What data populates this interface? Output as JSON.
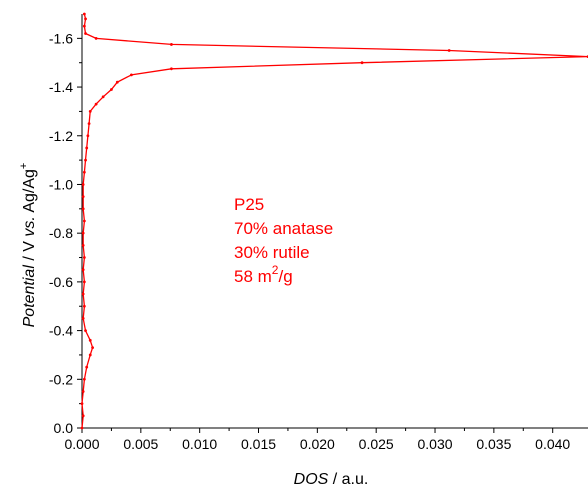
{
  "chart_data": {
    "type": "line",
    "title": "",
    "xlabel": {
      "italic": "DOS",
      "rest": " / a.u."
    },
    "ylabel": {
      "italic": "Potential",
      "rest": " / V ",
      "italic2": "vs.",
      "rest2": " Ag/Ag",
      "sup": "+"
    },
    "xlim": [
      0.0,
      0.043
    ],
    "ylim": [
      0.0,
      -1.7
    ],
    "xticks": [
      "0.000",
      "0.005",
      "0.010",
      "0.015",
      "0.020",
      "0.025",
      "0.030",
      "0.035",
      "0.040"
    ],
    "xtick_values": [
      0.0,
      0.005,
      0.01,
      0.015,
      0.02,
      0.025,
      0.03,
      0.035,
      0.04
    ],
    "yticks": [
      "0.0",
      "-0.2",
      "-0.4",
      "-0.6",
      "-0.8",
      "-1.0",
      "-1.2",
      "-1.4",
      "-1.6"
    ],
    "ytick_values": [
      0.0,
      -0.2,
      -0.4,
      -0.6,
      -0.8,
      -1.0,
      -1.2,
      -1.4,
      -1.6
    ],
    "series_color": "#ff0000",
    "series": [
      {
        "name": "",
        "points": [
          [
            0.0,
            0.0
          ],
          [
            0.0001,
            -0.05
          ],
          [
            0.0,
            -0.1
          ],
          [
            0.0001,
            -0.15
          ],
          [
            0.0002,
            -0.2
          ],
          [
            0.0004,
            -0.25
          ],
          [
            0.0007,
            -0.3
          ],
          [
            0.0009,
            -0.33
          ],
          [
            0.0007,
            -0.36
          ],
          [
            0.0003,
            -0.4
          ],
          [
            0.0001,
            -0.45
          ],
          [
            0.0002,
            -0.5
          ],
          [
            0.0001,
            -0.55
          ],
          [
            0.0002,
            -0.6
          ],
          [
            0.0001,
            -0.65
          ],
          [
            0.0002,
            -0.7
          ],
          [
            0.0001,
            -0.75
          ],
          [
            0.0001,
            -0.8
          ],
          [
            0.0002,
            -0.85
          ],
          [
            0.0001,
            -0.9
          ],
          [
            0.0001,
            -0.95
          ],
          [
            0.0001,
            -1.0
          ],
          [
            0.0002,
            -1.05
          ],
          [
            0.0003,
            -1.1
          ],
          [
            0.0004,
            -1.15
          ],
          [
            0.0005,
            -1.2
          ],
          [
            0.0006,
            -1.25
          ],
          [
            0.0007,
            -1.3
          ],
          [
            0.0012,
            -1.33
          ],
          [
            0.0018,
            -1.36
          ],
          [
            0.0025,
            -1.39
          ],
          [
            0.003,
            -1.42
          ],
          [
            0.0042,
            -1.45
          ],
          [
            0.0076,
            -1.475
          ],
          [
            0.0238,
            -1.5
          ],
          [
            0.043,
            -1.525
          ],
          [
            0.0312,
            -1.55
          ],
          [
            0.0076,
            -1.575
          ],
          [
            0.0012,
            -1.6
          ],
          [
            0.0003,
            -1.62
          ],
          [
            0.0002,
            -1.65
          ],
          [
            0.0003,
            -1.68
          ],
          [
            0.0002,
            -1.7
          ]
        ]
      }
    ],
    "annotation": {
      "color": "#ff0000",
      "line1": "P25",
      "line2": "70% anatase",
      "line3": "30% rutile",
      "line4_value": "58 m",
      "line4_sup": "2",
      "line4_unit": "/g"
    }
  }
}
